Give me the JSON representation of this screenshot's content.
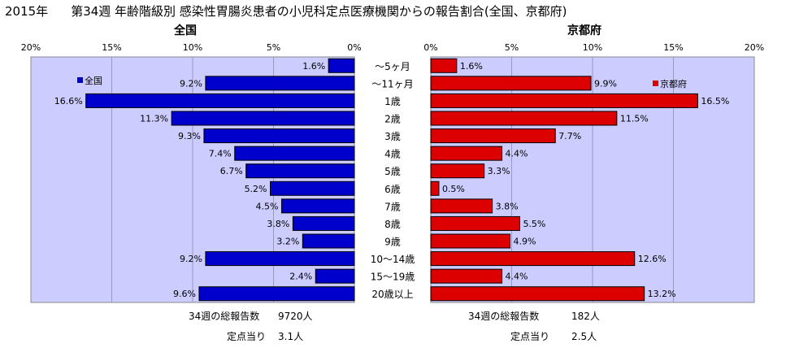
{
  "title": {
    "year": "2015年",
    "text": "第34週 年齢階級別 感染性胃腸炎患者の小児科定点医療機関からの報告割合(全国、京都府)"
  },
  "summary": {
    "national": {
      "total_label": "34週の総報告数",
      "total_value": "9720人",
      "per_label": "定点当り",
      "per_value": "3.1人"
    },
    "kyoto": {
      "total_label": "34週の総報告数",
      "total_value": "182人",
      "per_label": "定点当り",
      "per_value": "2.5人"
    }
  },
  "colors": {
    "national": "#0000cc",
    "kyoto": "#dd0000",
    "plot_bg": "#ccccff",
    "outline": "#000000"
  },
  "chart_data": [
    {
      "type": "bar",
      "title": "全国",
      "legend": "全国",
      "legend_position": "top-left",
      "orientation": "horizontal",
      "direction": "right-to-left",
      "xlim": [
        0,
        20
      ],
      "ticks": [
        "20%",
        "15%",
        "10%",
        "5%",
        "0%"
      ],
      "grid": true,
      "categories": [
        "～5ヶ月",
        "～11ヶ月",
        "1歳",
        "2歳",
        "3歳",
        "4歳",
        "5歳",
        "6歳",
        "7歳",
        "8歳",
        "9歳",
        "10～14歳",
        "15～19歳",
        "20歳以上"
      ],
      "values": [
        1.6,
        9.2,
        16.6,
        11.3,
        9.3,
        7.4,
        6.7,
        5.2,
        4.5,
        3.8,
        3.2,
        9.2,
        2.4,
        9.6
      ],
      "labels": [
        "1.6%",
        "9.2%",
        "16.6%",
        "11.3%",
        "9.3%",
        "7.4%",
        "6.7%",
        "5.2%",
        "4.5%",
        "3.8%",
        "3.2%",
        "9.2%",
        "2.4%",
        "9.6%"
      ]
    },
    {
      "type": "bar",
      "title": "京都府",
      "legend": "京都府",
      "legend_position": "top-right",
      "orientation": "horizontal",
      "direction": "left-to-right",
      "xlim": [
        0,
        20
      ],
      "ticks": [
        "0%",
        "5%",
        "10%",
        "15%",
        "20%"
      ],
      "grid": true,
      "categories": [
        "～5ヶ月",
        "～11ヶ月",
        "1歳",
        "2歳",
        "3歳",
        "4歳",
        "5歳",
        "6歳",
        "7歳",
        "8歳",
        "9歳",
        "10～14歳",
        "15～19歳",
        "20歳以上"
      ],
      "values": [
        1.6,
        9.9,
        16.5,
        11.5,
        7.7,
        4.4,
        3.3,
        0.5,
        3.8,
        5.5,
        4.9,
        12.6,
        4.4,
        13.2
      ],
      "labels": [
        "1.6%",
        "9.9%",
        "16.5%",
        "11.5%",
        "7.7%",
        "4.4%",
        "3.3%",
        "0.5%",
        "3.8%",
        "5.5%",
        "4.9%",
        "12.6%",
        "4.4%",
        "13.2%"
      ]
    }
  ]
}
